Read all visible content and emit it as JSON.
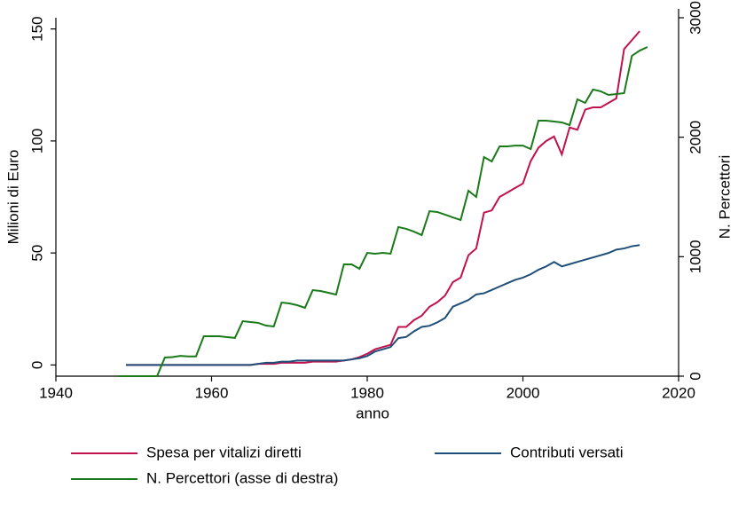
{
  "chart_data": {
    "type": "line",
    "xlabel": "anno",
    "ylabel": "Milioni di Euro",
    "y2label": "N. Percettori",
    "x": [
      1948,
      1949,
      1950,
      1951,
      1952,
      1953,
      1954,
      1955,
      1956,
      1957,
      1958,
      1959,
      1960,
      1961,
      1962,
      1963,
      1964,
      1965,
      1966,
      1967,
      1968,
      1969,
      1970,
      1971,
      1972,
      1973,
      1974,
      1975,
      1976,
      1977,
      1978,
      1979,
      1980,
      1981,
      1982,
      1983,
      1984,
      1985,
      1986,
      1987,
      1988,
      1989,
      1990,
      1991,
      1992,
      1993,
      1994,
      1995,
      1996,
      1997,
      1998,
      1999,
      2000,
      2001,
      2002,
      2003,
      2004,
      2005,
      2006,
      2007,
      2008,
      2009,
      2010,
      2011,
      2012,
      2013,
      2014,
      2015,
      2016
    ],
    "series": [
      {
        "name": "Spesa per vitalizi diretti",
        "color": "#c1124f",
        "axis": "y",
        "values": [
          null,
          0,
          0,
          0,
          0,
          0,
          0,
          0,
          0,
          0,
          0,
          0,
          0,
          0,
          0,
          0,
          0,
          0,
          0.5,
          0.5,
          0.5,
          1,
          1,
          1,
          1,
          1.5,
          1.5,
          1.5,
          1.5,
          2,
          2.5,
          3.5,
          5,
          7,
          8,
          9,
          17,
          17,
          20,
          22,
          26,
          28,
          31,
          37,
          39,
          49,
          52,
          68,
          69,
          75,
          77,
          79,
          81,
          91,
          97,
          100,
          102,
          94,
          106,
          105,
          114,
          115,
          115,
          117,
          119,
          141,
          145,
          149,
          null
        ]
      },
      {
        "name": "Contributi versati",
        "color": "#1f4e79",
        "axis": "y",
        "values": [
          null,
          0,
          0,
          0,
          0,
          0,
          0,
          0,
          0,
          0,
          0,
          0,
          0,
          0,
          0,
          0,
          0,
          0,
          0.5,
          1,
          1,
          1.5,
          1.5,
          2,
          2,
          2,
          2,
          2,
          2,
          2,
          2.5,
          3,
          4,
          6,
          7,
          8,
          12,
          12.5,
          15,
          17,
          17.5,
          19,
          21,
          26,
          27.5,
          29,
          31.5,
          32,
          33.5,
          35,
          36.5,
          38,
          39,
          40.5,
          42.5,
          44,
          46,
          44,
          45,
          46,
          47,
          48,
          49,
          50,
          51.5,
          52,
          53,
          53.5,
          null
        ]
      },
      {
        "name": "N. Percettori (asse di destra)",
        "color": "#1a7a1a",
        "axis": "y2",
        "values": [
          0,
          0,
          0,
          0,
          0,
          0,
          156,
          160,
          170,
          165,
          165,
          334,
          334,
          334,
          327,
          320,
          460,
          453,
          446,
          423,
          416,
          616,
          609,
          594,
          572,
          720,
          713,
          698,
          683,
          936,
          936,
          899,
          1032,
          1025,
          1032,
          1025,
          1248,
          1233,
          1210,
          1181,
          1381,
          1374,
          1352,
          1329,
          1307,
          1552,
          1500,
          1834,
          1797,
          1923,
          1923,
          1930,
          1930,
          1901,
          2139,
          2139,
          2131,
          2124,
          2102,
          2317,
          2287,
          2399,
          2384,
          2354,
          2361,
          2369,
          2681,
          2725,
          2755
        ]
      }
    ],
    "xlim": [
      1940,
      2020
    ],
    "xticks": [
      1940,
      1960,
      1980,
      2000,
      2020
    ],
    "ylim": [
      -5,
      155
    ],
    "yticks": [
      0,
      50,
      100,
      150
    ],
    "y2lim": [
      0,
      3000
    ],
    "y2ticks": [
      0,
      1000,
      2000,
      3000
    ],
    "grid": false
  }
}
